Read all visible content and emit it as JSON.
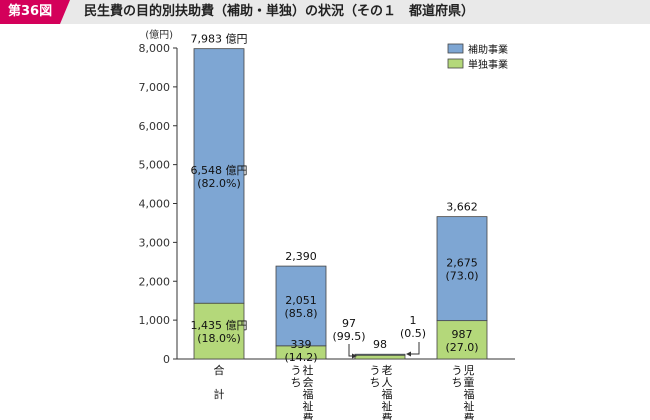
{
  "figure": {
    "badge": "第36図",
    "title": "民生費の目的別扶助費（補助・単独）の状況（その１　都道府県）"
  },
  "colors": {
    "header_bg": "#e9e9e9",
    "badge_bg": "#d4005a",
    "subsidy": "#7ea6d3",
    "independent": "#b4d87a",
    "axis": "#333333"
  },
  "chart_data": {
    "type": "bar",
    "stacked": true,
    "y_unit_label": "(億円)",
    "ylim": [
      0,
      8000
    ],
    "yticks": [
      "0",
      "1,000",
      "2,000",
      "3,000",
      "4,000",
      "5,000",
      "6,000",
      "7,000",
      "8,000"
    ],
    "ytick_values": [
      0,
      1000,
      2000,
      3000,
      4000,
      5000,
      6000,
      7000,
      8000
    ],
    "grid": false,
    "legend_position": "top-right",
    "categories": [
      {
        "label_lines": [
          "合",
          "",
          "計"
        ]
      },
      {
        "label_lines": [
          "う社",
          "ち会",
          "　福",
          "　祉",
          "　費"
        ]
      },
      {
        "label_lines": [
          "う老",
          "ち人",
          "　福",
          "　祉",
          "　費"
        ]
      },
      {
        "label_lines": [
          "う児",
          "ち童",
          "　福",
          "　祉",
          "　費"
        ]
      }
    ],
    "series": [
      {
        "name": "単独事業",
        "color": "#b4d87a",
        "values": [
          1435,
          339,
          97,
          987
        ]
      },
      {
        "name": "補助事業",
        "color": "#7ea6d3",
        "values": [
          6548,
          2051,
          1,
          2675
        ]
      }
    ],
    "totals": [
      "7,983 億円",
      "2,390",
      "98",
      "3,662"
    ],
    "data_labels": {
      "independent": [
        [
          "1,435 億円",
          "(18.0%)"
        ],
        [
          "339",
          "(14.2)"
        ],
        [
          "97",
          "(99.5)"
        ],
        [
          "987",
          "(27.0)"
        ]
      ],
      "subsidy": [
        [
          "6,548 億円",
          "(82.0%)"
        ],
        [
          "2,051",
          "(85.8)"
        ],
        [
          "1",
          "(0.5)"
        ],
        [
          "2,675",
          "(73.0)"
        ]
      ]
    }
  }
}
